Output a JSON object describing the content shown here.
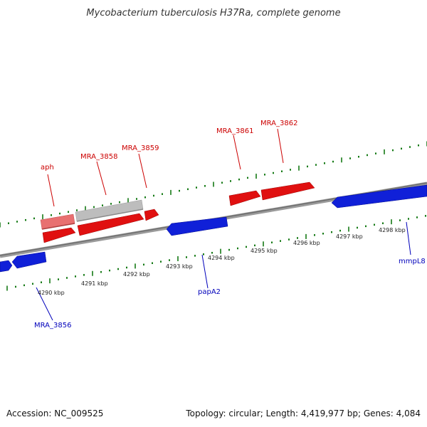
{
  "title": "Mycobacterium tuberculosis H37Ra, complete genome",
  "footer": {
    "accession": "Accession: NC_009525",
    "summary": "Topology: circular; Length: 4,419,977 bp; Genes: 4,084"
  },
  "colors": {
    "forward_gene": "#e01010",
    "reverse_gene": "#1020d8",
    "forward_label": "#cc0000",
    "reverse_label": "#0000bb",
    "faded_gene": "#e87070",
    "pseudo_gene": "#b8b8b8",
    "backbone": "#808080",
    "ruler_ticks": "#157a15"
  },
  "ruler": {
    "unit": "kbp",
    "labels": [
      "4290 kbp",
      "4291 kbp",
      "4292 kbp",
      "4293 kbp",
      "4294 kbp",
      "4295 kbp",
      "4296 kbp",
      "4297 kbp",
      "4298 kbp"
    ]
  },
  "genes": [
    {
      "label": "aph",
      "strand": "forward"
    },
    {
      "label": "MRA_3858",
      "strand": "forward"
    },
    {
      "label": "MRA_3859",
      "strand": "forward"
    },
    {
      "label": "MRA_3861",
      "strand": "forward"
    },
    {
      "label": "MRA_3862",
      "strand": "forward"
    },
    {
      "label": "MRA_3856",
      "strand": "reverse"
    },
    {
      "label": "papA2",
      "strand": "reverse"
    },
    {
      "label": "mmpL8",
      "strand": "reverse"
    }
  ]
}
